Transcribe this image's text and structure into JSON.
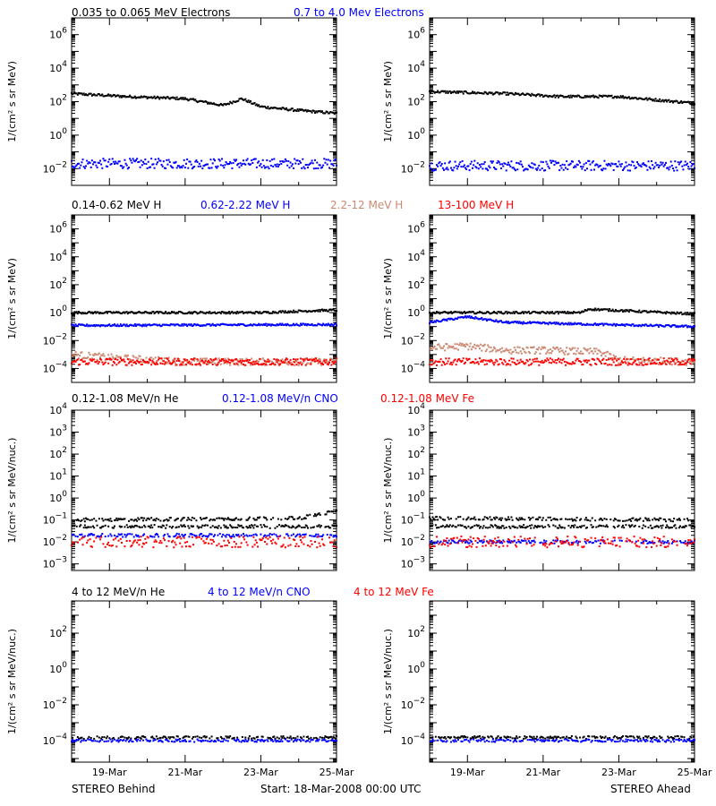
{
  "colors": {
    "black": "#000000",
    "blue": "#0000ff",
    "tan": "#cc8870",
    "red": "#ff0000"
  },
  "footer": {
    "left": "STEREO Behind",
    "center": "Start: 18-Mar-2008 00:00 UTC",
    "right": "STEREO Ahead"
  },
  "x_tick_labels": [
    "19-Mar",
    "21-Mar",
    "23-Mar",
    "25-Mar"
  ],
  "chart_data": [
    {
      "type": "scatter",
      "row": 0,
      "legend": [
        "0.035 to 0.065 MeV Electrons",
        "0.7 to 4.0 Mev Electrons"
      ],
      "ylabel": "1/(cm² s sr MeV)",
      "ylim_log10": [
        -3,
        7
      ],
      "ytick_exponents": [
        -2,
        0,
        2,
        4,
        6
      ],
      "x_days": [
        0,
        7
      ],
      "panels": {
        "behind": {
          "series": [
            {
              "color": "black",
              "points": [
                [
                  0.0,
                  300
                ],
                [
                  1.5,
                  200
                ],
                [
                  3.0,
                  150
                ],
                [
                  4.0,
                  60
                ],
                [
                  4.5,
                  150
                ],
                [
                  5.0,
                  50
                ],
                [
                  6.0,
                  30
                ],
                [
                  7.0,
                  20
                ]
              ]
            },
            {
              "color": "blue",
              "points": [
                [
                  0.0,
                  0.02
                ],
                [
                  3.5,
                  0.02
                ],
                [
                  7.0,
                  0.02
                ]
              ]
            }
          ]
        },
        "ahead": {
          "series": [
            {
              "color": "black",
              "points": [
                [
                  0.0,
                  400
                ],
                [
                  2.0,
                  300
                ],
                [
                  3.5,
                  200
                ],
                [
                  5.0,
                  200
                ],
                [
                  7.0,
                  80
                ]
              ]
            },
            {
              "color": "blue",
              "points": [
                [
                  0.0,
                  0.015
                ],
                [
                  3.5,
                  0.015
                ],
                [
                  7.0,
                  0.015
                ]
              ]
            }
          ]
        }
      }
    },
    {
      "type": "scatter",
      "row": 1,
      "legend": [
        "0.14-0.62 MeV H",
        "0.62-2.22 MeV H",
        "2.2-12 MeV H",
        "13-100 MeV H"
      ],
      "ylabel": "1/(cm² s sr MeV)",
      "ylim_log10": [
        -5,
        7
      ],
      "ytick_exponents": [
        -4,
        -2,
        0,
        2,
        4,
        6
      ],
      "x_days": [
        0,
        7
      ],
      "panels": {
        "behind": {
          "series": [
            {
              "color": "black",
              "points": [
                [
                  0.0,
                  1.0
                ],
                [
                  5.0,
                  1.0
                ],
                [
                  6.5,
                  1.4
                ],
                [
                  7.0,
                  1.5
                ]
              ]
            },
            {
              "color": "blue",
              "points": [
                [
                  0.0,
                  0.12
                ],
                [
                  7.0,
                  0.14
                ]
              ]
            },
            {
              "color": "tan",
              "points": [
                [
                  0.0,
                  0.001
                ],
                [
                  1.0,
                  0.0006
                ],
                [
                  3.0,
                  0.0003
                ],
                [
                  7.0,
                  0.0003
                ]
              ]
            },
            {
              "color": "red",
              "points": [
                [
                  0.0,
                  0.0003
                ],
                [
                  7.0,
                  0.0003
                ]
              ]
            }
          ]
        },
        "ahead": {
          "series": [
            {
              "color": "black",
              "points": [
                [
                  0.0,
                  1.0
                ],
                [
                  4.0,
                  1.0
                ],
                [
                  4.2,
                  1.8
                ],
                [
                  7.0,
                  0.8
                ]
              ]
            },
            {
              "color": "blue",
              "points": [
                [
                  0.0,
                  0.2
                ],
                [
                  1.0,
                  0.5
                ],
                [
                  2.0,
                  0.2
                ],
                [
                  7.0,
                  0.1
                ]
              ]
            },
            {
              "color": "tan",
              "points": [
                [
                  0.0,
                  0.003
                ],
                [
                  1.0,
                  0.004
                ],
                [
                  2.0,
                  0.002
                ],
                [
                  3.0,
                  0.002
                ],
                [
                  4.5,
                  0.0015
                ],
                [
                  5.0,
                  0.0004
                ],
                [
                  7.0,
                  0.0003
                ]
              ]
            },
            {
              "color": "red",
              "points": [
                [
                  0.0,
                  0.0003
                ],
                [
                  7.0,
                  0.0003
                ]
              ]
            }
          ]
        }
      }
    },
    {
      "type": "scatter",
      "row": 2,
      "legend": [
        "0.12-1.08 MeV/n He",
        "0.12-1.08 MeV/n CNO",
        "0.12-1.08 MeV Fe"
      ],
      "ylabel": "1/(cm² s sr MeV/nuc.)",
      "ylim_log10": [
        -3.3,
        4
      ],
      "ytick_exponents": [
        -3,
        -2,
        -1,
        0,
        1,
        2,
        3,
        4
      ],
      "x_days": [
        0,
        7
      ],
      "panels": {
        "behind": {
          "series": [
            {
              "color": "black",
              "points": [
                [
                  0.0,
                  0.05
                ],
                [
                  7.0,
                  0.05
                ]
              ]
            },
            {
              "color": "black",
              "points": [
                [
                  0.0,
                  0.1
                ],
                [
                  6.0,
                  0.12
                ],
                [
                  7.0,
                  0.25
                ]
              ]
            },
            {
              "color": "blue",
              "points": [
                [
                  0.0,
                  0.02
                ],
                [
                  7.0,
                  0.02
                ]
              ]
            },
            {
              "color": "red",
              "points": [
                [
                  0.0,
                  0.01
                ],
                [
                  7.0,
                  0.01
                ]
              ]
            }
          ]
        },
        "ahead": {
          "series": [
            {
              "color": "black",
              "points": [
                [
                  0.0,
                  0.05
                ],
                [
                  7.0,
                  0.05
                ]
              ]
            },
            {
              "color": "black",
              "points": [
                [
                  0.0,
                  0.12
                ],
                [
                  7.0,
                  0.1
                ]
              ]
            },
            {
              "color": "blue",
              "points": [
                [
                  0.0,
                  0.01
                ],
                [
                  7.0,
                  0.01
                ]
              ]
            },
            {
              "color": "red",
              "points": [
                [
                  0.0,
                  0.01
                ],
                [
                  7.0,
                  0.01
                ]
              ]
            }
          ]
        }
      }
    },
    {
      "type": "scatter",
      "row": 3,
      "legend": [
        "4 to 12 MeV/n He",
        "4 to 12 MeV/n CNO",
        "4 to 12 MeV Fe"
      ],
      "ylabel": "1/(cm² s sr MeV/nuc.)",
      "ylim_log10": [
        -5.2,
        3.8
      ],
      "ytick_exponents": [
        -4,
        -2,
        0,
        2
      ],
      "x_days": [
        0,
        7
      ],
      "panels": {
        "behind": {
          "series": [
            {
              "color": "black",
              "points": [
                [
                  0.0,
                  0.00015
                ],
                [
                  7.0,
                  0.00015
                ]
              ]
            },
            {
              "color": "blue",
              "points": [
                [
                  0.0,
                  0.0001
                ],
                [
                  7.0,
                  0.0001
                ]
              ]
            }
          ]
        },
        "ahead": {
          "series": [
            {
              "color": "black",
              "points": [
                [
                  0.0,
                  0.00015
                ],
                [
                  7.0,
                  0.00015
                ]
              ]
            },
            {
              "color": "blue",
              "points": [
                [
                  0.0,
                  0.0001
                ],
                [
                  7.0,
                  0.0001
                ]
              ]
            }
          ]
        }
      }
    }
  ]
}
